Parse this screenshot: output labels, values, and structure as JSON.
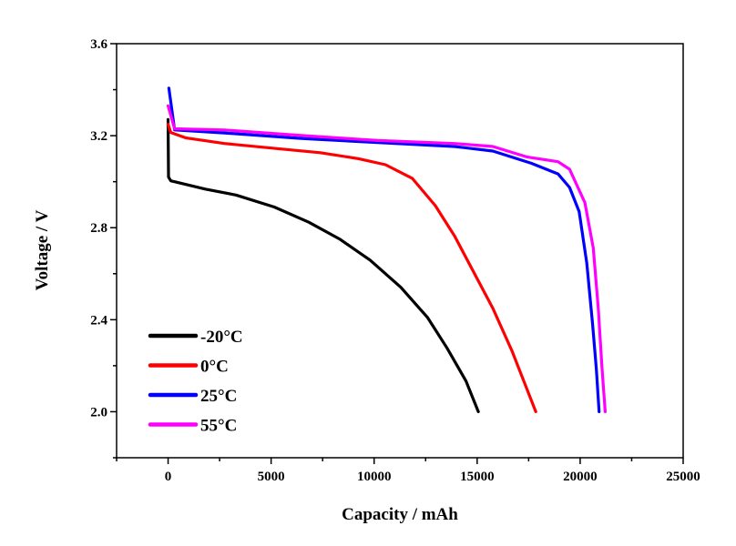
{
  "chart_data": {
    "type": "line",
    "title": "",
    "xlabel": "Capacity / mAh",
    "ylabel": "Voltage / V",
    "xlim": [
      -2500,
      25000
    ],
    "ylim": [
      1.8,
      3.6
    ],
    "xticks": [
      0,
      5000,
      10000,
      15000,
      20000,
      25000
    ],
    "xtick_labels": [
      "0",
      "5000",
      "10000",
      "15000",
      "20000",
      "25000"
    ],
    "yticks": [
      2.0,
      2.4,
      2.8,
      3.2,
      3.6
    ],
    "ytick_labels": [
      "2.0",
      "2.4",
      "2.8",
      "3.2",
      "3.6"
    ],
    "grid": false,
    "legend_position": "bottom-left",
    "series": [
      {
        "name": "-20°C",
        "color": "#000000",
        "x": [
          0,
          20,
          130,
          1805,
          3294,
          5155,
          6830,
          8319,
          9807,
          11296,
          12599,
          13530,
          14460,
          15056
        ],
        "y": [
          3.27,
          3.02,
          3.004,
          2.968,
          2.942,
          2.89,
          2.824,
          2.751,
          2.659,
          2.541,
          2.409,
          2.278,
          2.133,
          2.0
        ]
      },
      {
        "name": "0°C",
        "color": "#ff0000",
        "x": [
          0,
          130,
          875,
          2736,
          5527,
          7388,
          9249,
          10552,
          11855,
          12971,
          13902,
          14832,
          15763,
          16693,
          17847
        ],
        "y": [
          3.25,
          3.214,
          3.19,
          3.166,
          3.142,
          3.126,
          3.1,
          3.074,
          3.014,
          2.896,
          2.764,
          2.607,
          2.449,
          2.264,
          2.0
        ]
      },
      {
        "name": "25°C",
        "color": "#0000ff",
        "x": [
          37,
          316,
          2736,
          6458,
          10180,
          13902,
          15763,
          17624,
          18927,
          19485,
          19950,
          20322,
          20601,
          20787,
          20918
        ],
        "y": [
          3.407,
          3.225,
          3.212,
          3.188,
          3.17,
          3.153,
          3.133,
          3.08,
          3.034,
          2.975,
          2.87,
          2.646,
          2.383,
          2.185,
          2.0
        ]
      },
      {
        "name": "55°C",
        "color": "#ff00ff",
        "x": [
          0,
          316,
          2736,
          6458,
          10180,
          13902,
          15763,
          17438,
          18927,
          19485,
          20229,
          20638,
          20880,
          21066,
          21215
        ],
        "y": [
          3.33,
          3.23,
          3.225,
          3.201,
          3.179,
          3.166,
          3.153,
          3.107,
          3.087,
          3.054,
          2.909,
          2.712,
          2.449,
          2.185,
          2.0
        ]
      }
    ]
  }
}
